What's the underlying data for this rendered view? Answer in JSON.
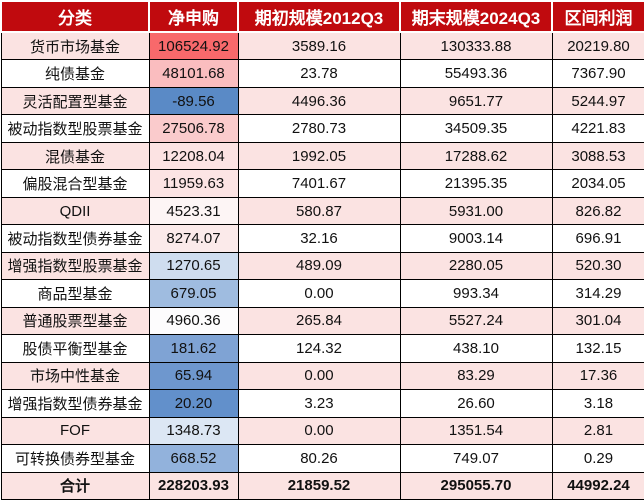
{
  "colors": {
    "header_red": "#c00a0e",
    "row_pink": "#fbe3e2",
    "row_white": "#ffffff",
    "grid_black": "#000000",
    "scale_max_red": "#f8696b",
    "scale_mid_white": "#fcfcff",
    "scale_min_blue": "#5a8ac6"
  },
  "chart_data": {
    "type": "table",
    "columns": [
      "分类",
      "净申购",
      "期初规模2012Q3",
      "期末规模2024Q3",
      "区间利润"
    ],
    "rows": [
      {
        "category": "货币市场基金",
        "net": "106524.92",
        "begin": "3589.16",
        "end": "130333.88",
        "profit": "20219.80",
        "net_bg": "#f8696b"
      },
      {
        "category": "纯债基金",
        "net": "48101.68",
        "begin": "23.78",
        "end": "55493.36",
        "profit": "7367.90",
        "net_bg": "#fabdbf"
      },
      {
        "category": "灵活配置型基金",
        "net": "-89.56",
        "begin": "4496.36",
        "end": "9651.77",
        "profit": "5244.97",
        "net_bg": "#5a8ac6"
      },
      {
        "category": "被动指数型股票基金",
        "net": "27506.78",
        "begin": "2780.73",
        "end": "34509.35",
        "profit": "4221.83",
        "net_bg": "#facbcc"
      },
      {
        "category": "混债基金",
        "net": "12208.04",
        "begin": "1992.05",
        "end": "17288.62",
        "profit": "3088.53",
        "net_bg": "#fce3e3"
      },
      {
        "category": "偏股混合型基金",
        "net": "11959.63",
        "begin": "7401.67",
        "end": "21395.35",
        "profit": "2034.05",
        "net_bg": "#fce4e4"
      },
      {
        "category": "QDII",
        "net": "4523.31",
        "begin": "580.87",
        "end": "5931.00",
        "profit": "826.82",
        "net_bg": "#fdf5f5"
      },
      {
        "category": "被动指数型债券基金",
        "net": "8274.07",
        "begin": "32.16",
        "end": "9003.14",
        "profit": "696.91",
        "net_bg": "#fbeaea"
      },
      {
        "category": "增强指数型股票基金",
        "net": "1270.65",
        "begin": "489.09",
        "end": "2280.05",
        "profit": "520.30",
        "net_bg": "#cfddef"
      },
      {
        "category": "商品型基金",
        "net": "679.05",
        "begin": "0.00",
        "end": "993.34",
        "profit": "314.29",
        "net_bg": "#9fbce0"
      },
      {
        "category": "普通股票型基金",
        "net": "4960.36",
        "begin": "265.84",
        "end": "5527.24",
        "profit": "301.04",
        "net_bg": "#fdfcfd"
      },
      {
        "category": "股债平衡型基金",
        "net": "181.62",
        "begin": "124.32",
        "end": "438.10",
        "profit": "132.15",
        "net_bg": "#7fa3d4"
      },
      {
        "category": "市场中性基金",
        "net": "65.94",
        "begin": "0.00",
        "end": "83.29",
        "profit": "17.36",
        "net_bg": "#6e97ce"
      },
      {
        "category": "增强指数型债券基金",
        "net": "20.20",
        "begin": "3.23",
        "end": "26.60",
        "profit": "3.18",
        "net_bg": "#6290cb"
      },
      {
        "category": "FOF",
        "net": "1348.73",
        "begin": "0.00",
        "end": "1351.54",
        "profit": "2.81",
        "net_bg": "#dce7f4"
      },
      {
        "category": "可转换债券型基金",
        "net": "668.52",
        "begin": "80.26",
        "end": "749.07",
        "profit": "0.29",
        "net_bg": "#92b2dc"
      }
    ],
    "total": {
      "category": "合计",
      "net": "228203.93",
      "begin": "21859.52",
      "end": "295055.70",
      "profit": "44992.24"
    }
  }
}
